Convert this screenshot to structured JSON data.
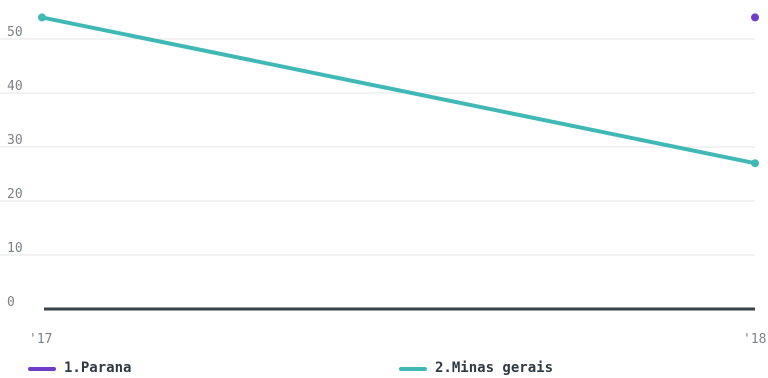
{
  "colors": {
    "series_1": "#6f3dc7",
    "series_2": "#40b8b5",
    "gridline": "#e6e6e6",
    "baseline": "#38424a",
    "tick_text": "#7b8289"
  },
  "chart_data": {
    "type": "line",
    "x": [
      "'17",
      "'18"
    ],
    "ylim": [
      0,
      55
    ],
    "yticks": [
      "0",
      "10",
      "20",
      "30",
      "40",
      "50"
    ],
    "grid": true,
    "legend_position": "bottom",
    "series": [
      {
        "name": "1.Parana",
        "values": [
          null,
          54
        ]
      },
      {
        "name": "2.Minas gerais",
        "values": [
          54,
          27
        ]
      }
    ]
  },
  "legend": {
    "items": [
      {
        "label": "1.Parana"
      },
      {
        "label": "2.Minas gerais"
      }
    ]
  }
}
